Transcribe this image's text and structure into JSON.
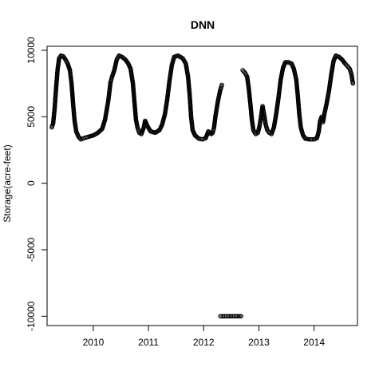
{
  "chart_data": {
    "type": "scatter",
    "title": "DNN",
    "xlabel": "",
    "ylabel": "Storage(acre-feet)",
    "xlim": [
      "2009-03-01",
      "2014-10-15"
    ],
    "ylim": [
      -10700,
      10300
    ],
    "x_ticks": [
      {
        "date": "2010-01-01",
        "label": "2010"
      },
      {
        "date": "2011-01-01",
        "label": "2011"
      },
      {
        "date": "2012-01-01",
        "label": "2012"
      },
      {
        "date": "2013-01-01",
        "label": "2013"
      },
      {
        "date": "2014-01-01",
        "label": "2014"
      }
    ],
    "y_ticks": [
      {
        "value": 10000,
        "label": "10000"
      },
      {
        "value": 5000,
        "label": "5000"
      },
      {
        "value": 0,
        "label": "0"
      },
      {
        "value": -5000,
        "label": "-5000"
      },
      {
        "value": -10000,
        "label": "-10000"
      }
    ],
    "marker": "open-circle",
    "grid": false,
    "series": [
      {
        "points": [
          [
            "2009-04-01",
            4200
          ],
          [
            "2009-04-10",
            4500
          ],
          [
            "2009-04-20",
            5600
          ],
          [
            "2009-04-30",
            7200
          ],
          [
            "2009-05-10",
            8600
          ],
          [
            "2009-05-20",
            9400
          ],
          [
            "2009-06-01",
            9600
          ],
          [
            "2009-06-15",
            9550
          ],
          [
            "2009-07-01",
            9300
          ],
          [
            "2009-07-15",
            9000
          ],
          [
            "2009-07-30",
            8500
          ],
          [
            "2009-08-10",
            7500
          ],
          [
            "2009-08-20",
            6000
          ],
          [
            "2009-08-30",
            4700
          ],
          [
            "2009-09-10",
            3900
          ],
          [
            "2009-09-25",
            3500
          ],
          [
            "2009-10-10",
            3300
          ],
          [
            "2009-11-01",
            3400
          ],
          [
            "2009-12-01",
            3500
          ],
          [
            "2010-01-01",
            3600
          ],
          [
            "2010-02-01",
            3800
          ],
          [
            "2010-03-01",
            4100
          ],
          [
            "2010-03-20",
            4800
          ],
          [
            "2010-04-10",
            6200
          ],
          [
            "2010-04-25",
            7600
          ],
          [
            "2010-05-05",
            8000
          ],
          [
            "2010-05-20",
            8500
          ],
          [
            "2010-06-05",
            9300
          ],
          [
            "2010-06-20",
            9600
          ],
          [
            "2010-07-10",
            9500
          ],
          [
            "2010-08-01",
            9300
          ],
          [
            "2010-08-20",
            9000
          ],
          [
            "2010-09-05",
            8600
          ],
          [
            "2010-09-20",
            7500
          ],
          [
            "2010-10-01",
            6000
          ],
          [
            "2010-10-10",
            4800
          ],
          [
            "2010-10-20",
            4200
          ],
          [
            "2010-11-01",
            3800
          ],
          [
            "2010-11-15",
            3700
          ],
          [
            "2010-12-01",
            4200
          ],
          [
            "2010-12-10",
            4700
          ],
          [
            "2010-12-25",
            4300
          ],
          [
            "2011-01-15",
            3900
          ],
          [
            "2011-02-15",
            3800
          ],
          [
            "2011-03-15",
            4000
          ],
          [
            "2011-04-01",
            4400
          ],
          [
            "2011-04-20",
            5200
          ],
          [
            "2011-05-05",
            6300
          ],
          [
            "2011-05-20",
            7700
          ],
          [
            "2011-06-05",
            8900
          ],
          [
            "2011-06-20",
            9500
          ],
          [
            "2011-07-15",
            9600
          ],
          [
            "2011-08-15",
            9400
          ],
          [
            "2011-09-05",
            9000
          ],
          [
            "2011-09-20",
            8000
          ],
          [
            "2011-10-01",
            6600
          ],
          [
            "2011-10-10",
            5000
          ],
          [
            "2011-10-20",
            4000
          ],
          [
            "2011-11-05",
            3600
          ],
          [
            "2011-12-01",
            3350
          ],
          [
            "2011-12-25",
            3300
          ],
          [
            "2012-01-15",
            3400
          ],
          [
            "2012-02-01",
            3900
          ],
          [
            "2012-02-20",
            3700
          ],
          [
            "2012-03-01",
            3800
          ],
          [
            "2012-03-10",
            4200
          ],
          [
            "2012-03-20",
            5100
          ],
          [
            "2012-04-05",
            6200
          ],
          [
            "2012-04-20",
            7000
          ],
          [
            "2012-05-01",
            7400
          ],
          [
            "2012-04-20",
            -10000
          ],
          [
            "2012-05-15",
            -10000
          ],
          [
            "2012-06-15",
            -10000
          ],
          [
            "2012-07-15",
            -10000
          ],
          [
            "2012-08-15",
            -10000
          ],
          [
            "2012-09-05",
            -10000
          ],
          [
            "2012-09-15",
            8500
          ],
          [
            "2012-10-01",
            8300
          ],
          [
            "2012-10-15",
            8000
          ],
          [
            "2012-10-25",
            7200
          ],
          [
            "2012-11-05",
            6000
          ],
          [
            "2012-11-15",
            4800
          ],
          [
            "2012-11-25",
            4000
          ],
          [
            "2012-12-10",
            3700
          ],
          [
            "2012-12-25",
            3800
          ],
          [
            "2013-01-05",
            4300
          ],
          [
            "2013-01-15",
            5000
          ],
          [
            "2013-01-25",
            5800
          ],
          [
            "2013-02-05",
            5100
          ],
          [
            "2013-02-15",
            4400
          ],
          [
            "2013-02-25",
            4000
          ],
          [
            "2013-03-10",
            3800
          ],
          [
            "2013-03-25",
            3700
          ],
          [
            "2013-04-10",
            4200
          ],
          [
            "2013-04-25",
            5200
          ],
          [
            "2013-05-10",
            6400
          ],
          [
            "2013-05-25",
            7800
          ],
          [
            "2013-06-10",
            8700
          ],
          [
            "2013-06-25",
            9100
          ],
          [
            "2013-07-15",
            9100
          ],
          [
            "2013-08-05",
            9000
          ],
          [
            "2013-08-20",
            8600
          ],
          [
            "2013-09-05",
            7800
          ],
          [
            "2013-09-15",
            6600
          ],
          [
            "2013-09-25",
            5200
          ],
          [
            "2013-10-05",
            4200
          ],
          [
            "2013-10-20",
            3600
          ],
          [
            "2013-11-05",
            3350
          ],
          [
            "2013-12-01",
            3300
          ],
          [
            "2014-01-01",
            3300
          ],
          [
            "2014-01-20",
            3400
          ],
          [
            "2014-02-01",
            3900
          ],
          [
            "2014-02-10",
            4700
          ],
          [
            "2014-02-20",
            5000
          ],
          [
            "2014-03-01",
            4600
          ],
          [
            "2014-03-10",
            5200
          ],
          [
            "2014-03-25",
            6000
          ],
          [
            "2014-04-10",
            7000
          ],
          [
            "2014-04-25",
            8200
          ],
          [
            "2014-05-10",
            9200
          ],
          [
            "2014-05-25",
            9600
          ],
          [
            "2014-06-15",
            9500
          ],
          [
            "2014-07-05",
            9300
          ],
          [
            "2014-07-25",
            9000
          ],
          [
            "2014-08-10",
            8800
          ],
          [
            "2014-08-25",
            8600
          ],
          [
            "2014-09-05",
            8200
          ],
          [
            "2014-09-15",
            7500
          ]
        ]
      }
    ]
  }
}
